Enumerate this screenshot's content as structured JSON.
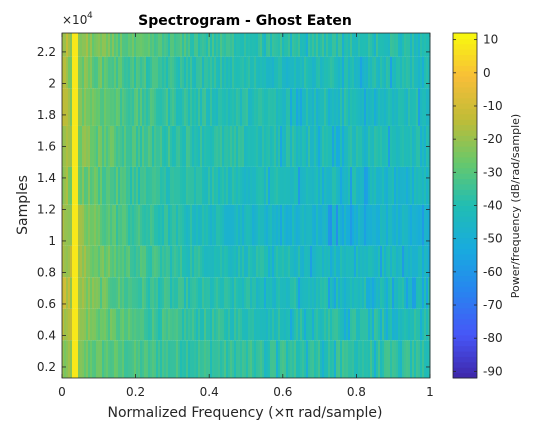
{
  "chart_data": {
    "type": "heatmap",
    "title": "Spectrogram - Ghost Eaten",
    "xlabel": "Normalized Frequency  (×π rad/sample)",
    "ylabel": "Samples",
    "y_exponent_label": "×10",
    "y_exponent_power": "4",
    "colorbar_label": "Power/frequency (dB/rad/sample)",
    "colormap": "parula",
    "xlim": [
      0,
      1
    ],
    "ylim": [
      0.13,
      2.32
    ],
    "clim": [
      -92,
      12
    ],
    "x_ticks": [
      0,
      0.2,
      0.4,
      0.6,
      0.8,
      1
    ],
    "x_tick_labels": [
      "0",
      "0.2",
      "0.4",
      "0.6",
      "0.8",
      "1"
    ],
    "y_ticks": [
      0.2,
      0.4,
      0.6,
      0.8,
      1,
      1.2,
      1.4,
      1.6,
      1.8,
      2,
      2.2
    ],
    "y_tick_labels": [
      "0.2",
      "0.4",
      "0.6",
      "0.8",
      "1",
      "1.2",
      "1.4",
      "1.6",
      "1.8",
      "2",
      "2.2"
    ],
    "colorbar_ticks": [
      10,
      0,
      -10,
      -20,
      -30,
      -40,
      -50,
      -60,
      -70,
      -80,
      -90
    ],
    "colorbar_tick_labels": [
      "10",
      "0",
      "-10",
      "-20",
      "-30",
      "-40",
      "-50",
      "-60",
      "-70",
      "-80",
      "-90"
    ],
    "time_segments": [
      {
        "y_start": 0.13,
        "y_end": 0.37,
        "low_freq_db": -22,
        "falloff": 0.18,
        "floor_db": -38
      },
      {
        "y_start": 0.37,
        "y_end": 0.57,
        "low_freq_db": -14,
        "falloff": 0.16,
        "floor_db": -40
      },
      {
        "y_start": 0.57,
        "y_end": 0.77,
        "low_freq_db": -12,
        "falloff": 0.15,
        "floor_db": -42
      },
      {
        "y_start": 0.77,
        "y_end": 0.97,
        "low_freq_db": -14,
        "falloff": 0.2,
        "floor_db": -44
      },
      {
        "y_start": 0.97,
        "y_end": 1.23,
        "low_freq_db": -16,
        "falloff": 0.22,
        "floor_db": -48
      },
      {
        "y_start": 1.23,
        "y_end": 1.47,
        "low_freq_db": -20,
        "falloff": 0.2,
        "floor_db": -44
      },
      {
        "y_start": 1.47,
        "y_end": 1.73,
        "low_freq_db": -18,
        "falloff": 0.2,
        "floor_db": -42
      },
      {
        "y_start": 1.73,
        "y_end": 1.97,
        "low_freq_db": -16,
        "falloff": 0.18,
        "floor_db": -42
      },
      {
        "y_start": 1.97,
        "y_end": 2.17,
        "low_freq_db": -18,
        "falloff": 0.18,
        "floor_db": -42
      },
      {
        "y_start": 2.17,
        "y_end": 2.32,
        "low_freq_db": -16,
        "falloff": 0.22,
        "floor_db": -40
      }
    ],
    "peak_line": {
      "x": 0.035,
      "db": 8
    }
  }
}
